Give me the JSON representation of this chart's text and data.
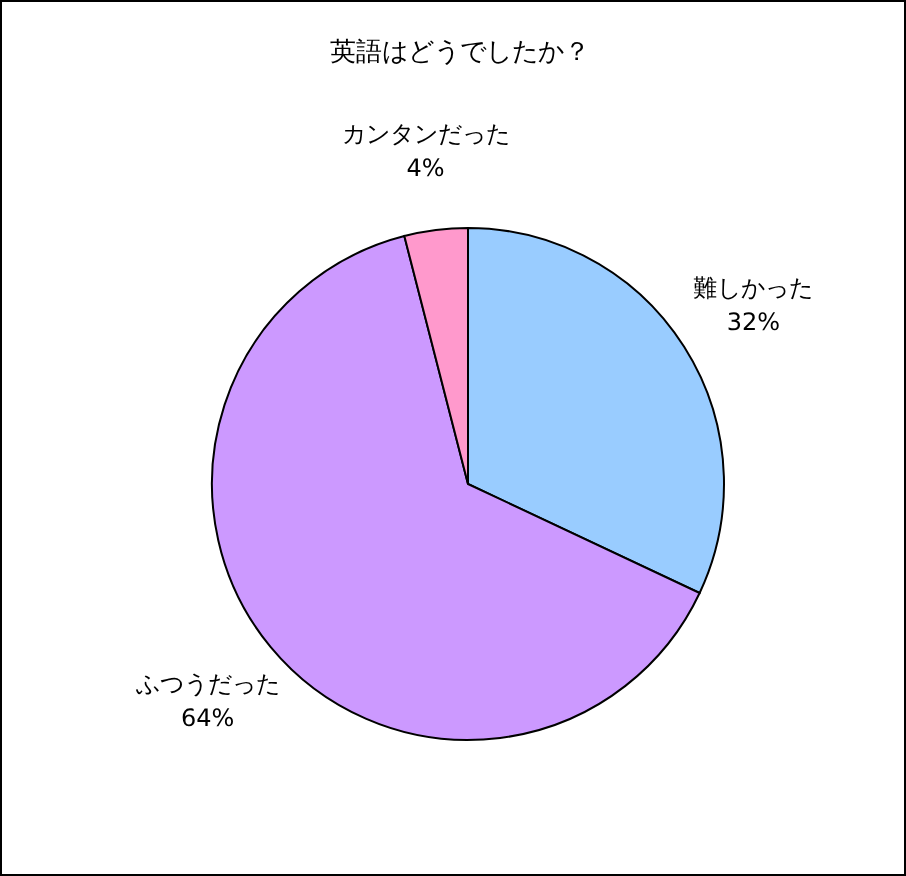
{
  "chart_data": {
    "type": "pie",
    "title": "英語はどうでしたか？",
    "categories": [
      "難しかった",
      "ふつうだった",
      "カンタンだった"
    ],
    "values": [
      32,
      64,
      4
    ],
    "colors": [
      "#99ccff",
      "#cc99ff",
      "#ff99cc"
    ],
    "value_labels": [
      "32%",
      "64%",
      "4%"
    ]
  }
}
